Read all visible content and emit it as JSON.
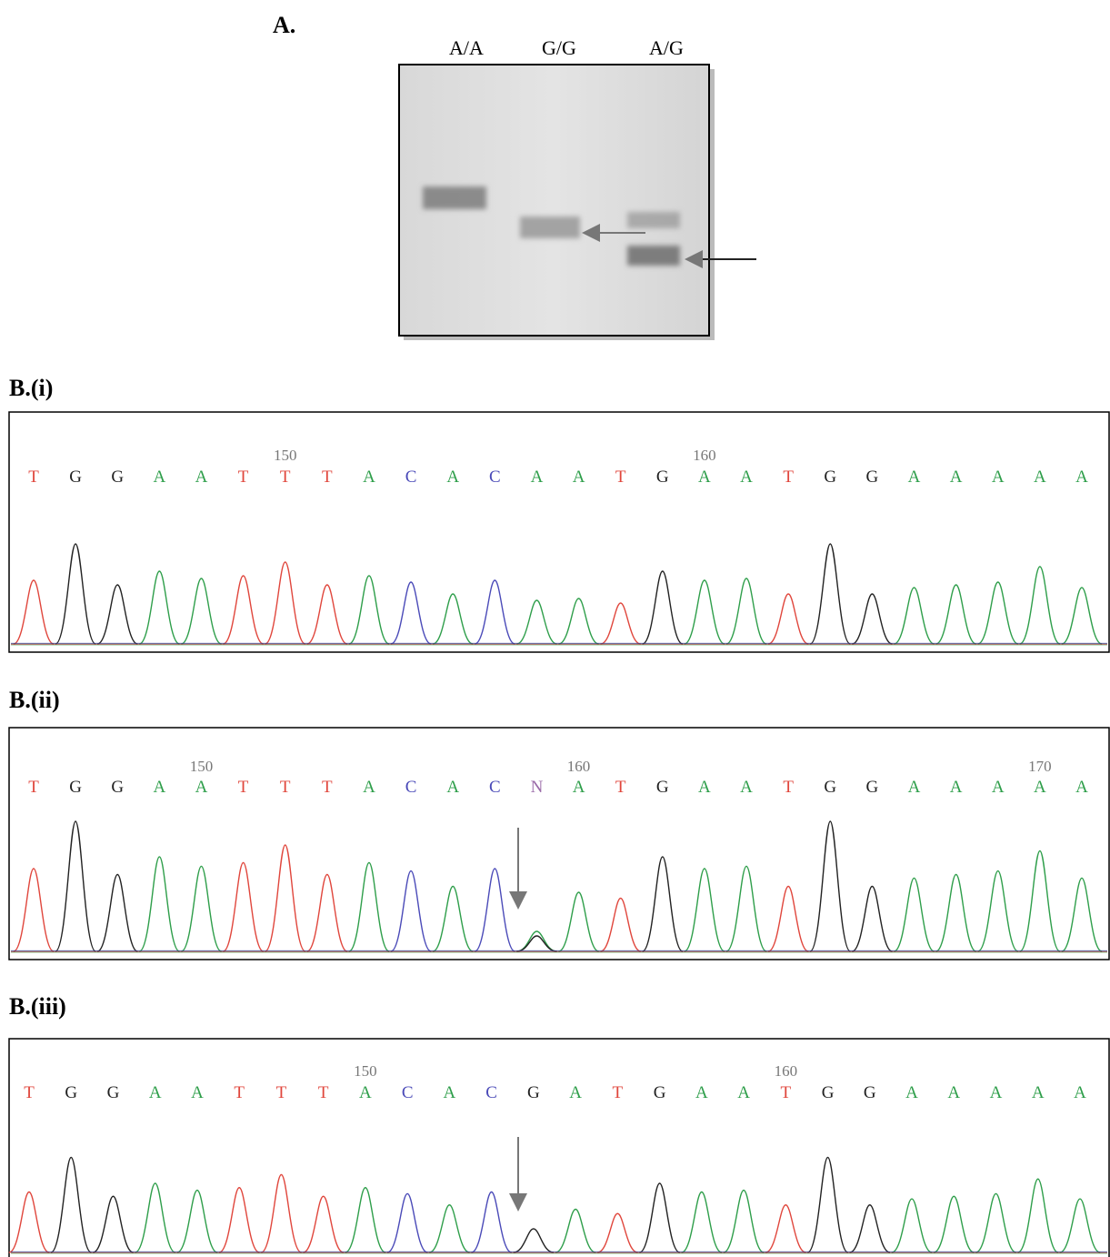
{
  "panel_a": {
    "label": "A.",
    "lanes": [
      "A/A",
      "G/G",
      "A/G"
    ]
  },
  "panels": [
    {
      "label": "B.(i)",
      "bases": [
        "T",
        "G",
        "G",
        "A",
        "A",
        "T",
        "T",
        "T",
        "A",
        "C",
        "A",
        "C",
        "A",
        "A",
        "T",
        "G",
        "A",
        "A",
        "T",
        "G",
        "G",
        "A",
        "A",
        "A",
        "A",
        "A"
      ],
      "positions": [
        "150",
        "160"
      ]
    },
    {
      "label": "B.(ii)",
      "bases": [
        "T",
        "G",
        "G",
        "A",
        "A",
        "T",
        "T",
        "T",
        "A",
        "C",
        "A",
        "C",
        "N",
        "A",
        "T",
        "G",
        "A",
        "A",
        "T",
        "G",
        "G",
        "A",
        "A",
        "A",
        "A",
        "A"
      ],
      "positions": [
        "150",
        "160",
        "170"
      ]
    },
    {
      "label": "B.(iii)",
      "bases": [
        "T",
        "G",
        "G",
        "A",
        "A",
        "T",
        "T",
        "T",
        "A",
        "C",
        "A",
        "C",
        "G",
        "A",
        "T",
        "G",
        "A",
        "A",
        "T",
        "G",
        "G",
        "A",
        "A",
        "A",
        "A",
        "A"
      ],
      "positions": [
        "150",
        "160"
      ]
    }
  ]
}
